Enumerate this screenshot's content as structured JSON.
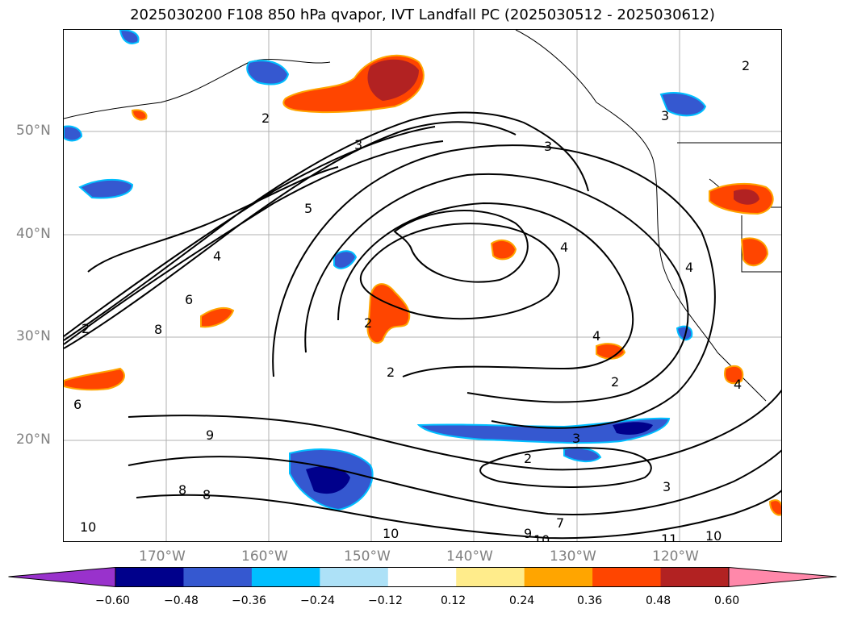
{
  "title": "2025030200 F108 850 hPa qvapor, IVT Landfall PC (2025030512 - 2025030612)",
  "map": {
    "lat_labels": [
      "50°N",
      "40°N",
      "30°N",
      "20°N"
    ],
    "lon_labels": [
      "170°W",
      "160°W",
      "150°W",
      "140°W",
      "130°W",
      "120°W"
    ],
    "contour_labels": [
      "2",
      "3",
      "5",
      "4",
      "6",
      "2",
      "8",
      "2",
      "2",
      "4",
      "3",
      "4",
      "2",
      "3",
      "6",
      "9",
      "8",
      "8",
      "10",
      "10",
      "9",
      "10",
      "7",
      "11",
      "10",
      "3",
      "2",
      "3",
      "4",
      "4",
      "2"
    ]
  },
  "colorbar": {
    "ticks": [
      "−0.60",
      "−0.48",
      "−0.36",
      "−0.24",
      "−0.12",
      "0.12",
      "0.24",
      "0.36",
      "0.48",
      "0.60"
    ],
    "colors": [
      "#9932CC",
      "#00008B",
      "#3558D0",
      "#00BFFF",
      "#ADE1F7",
      "#FFFFFF",
      "#FFEC8B",
      "#FFA500",
      "#FF4500",
      "#B22222",
      "#FF88AA"
    ]
  }
}
